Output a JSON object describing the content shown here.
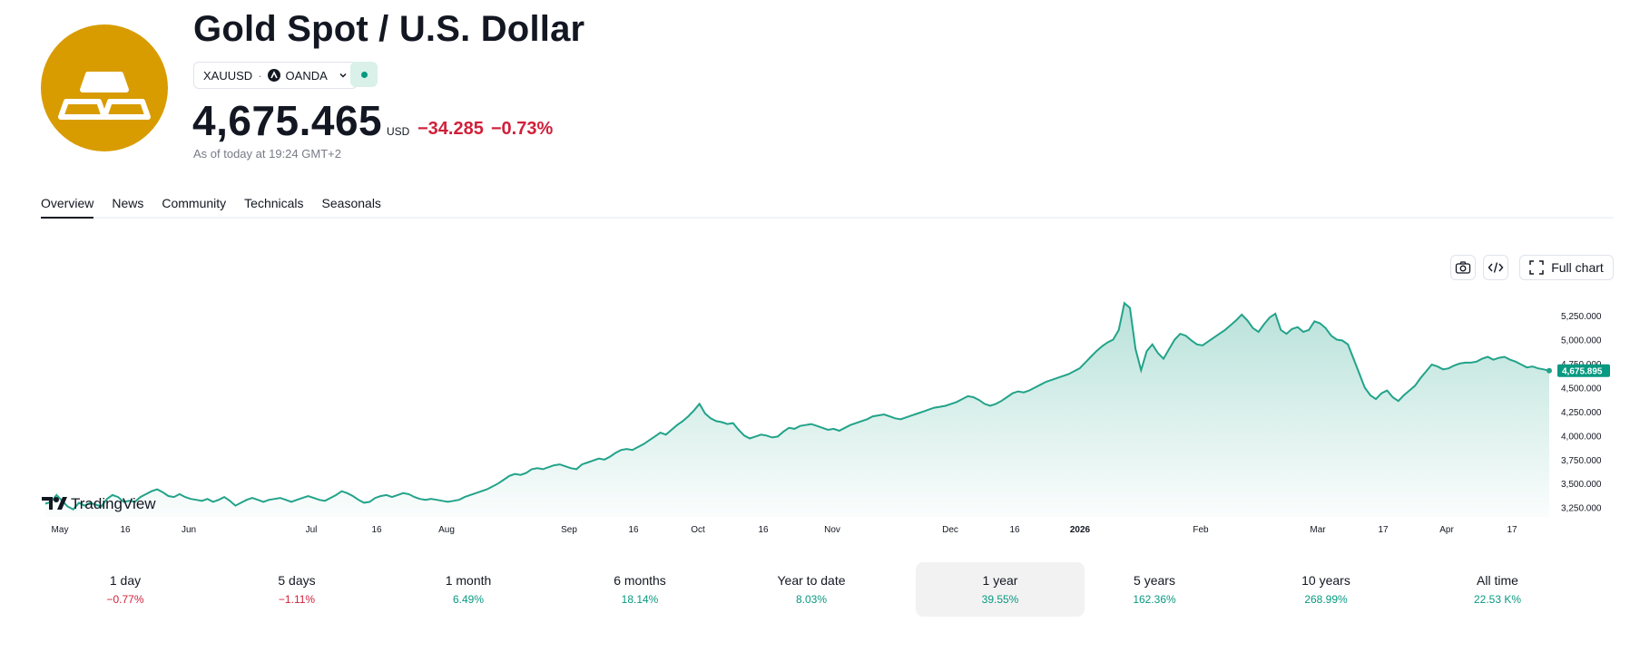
{
  "header": {
    "title": "Gold Spot / U.S. Dollar",
    "symbol": "XAUUSD",
    "separator": "·",
    "exchange": "OANDA",
    "price": "4,675.465",
    "currency": "USD",
    "change_abs": "−34.285",
    "change_pct": "−0.73%",
    "as_of": "As of today at 19:24 GMT+2",
    "colors": {
      "logo_bg": "#d89c00",
      "negative": "#d1203a",
      "positive": "#089981"
    }
  },
  "tabs": [
    {
      "label": "Overview",
      "active": true
    },
    {
      "label": "News"
    },
    {
      "label": "Community"
    },
    {
      "label": "Technicals"
    },
    {
      "label": "Seasonals"
    }
  ],
  "toolbar": {
    "snapshot_icon": "camera-icon",
    "embed_icon": "code-icon",
    "full_chart_icon": "fullscreen-icon",
    "full_chart_label": "Full chart"
  },
  "chart_data": {
    "type": "area",
    "watermark": "TradingView",
    "x_ticks": [
      "May",
      "16",
      "Jun",
      "Jul",
      "16",
      "Aug",
      "Sep",
      "16",
      "Oct",
      "16",
      "Nov",
      "Dec",
      "16",
      "2026",
      "Feb",
      "Mar",
      "17",
      "Apr",
      "17"
    ],
    "y_ticks": [
      "5,250.000",
      "5,000.000",
      "4,750.000",
      "4,500.000",
      "4,250.000",
      "4,000.000",
      "3,750.000",
      "3,500.000",
      "3,250.000"
    ],
    "ylim": [
      3200,
      5420
    ],
    "last_price_label": "4,675.895",
    "line_color": "#22a38a",
    "series": [
      {
        "values": [
          3290,
          3310,
          3380,
          3320,
          3260,
          3230,
          3300,
          3270,
          3300,
          3280,
          3260,
          3340,
          3380,
          3360,
          3310,
          3320,
          3310,
          3360,
          3390,
          3420,
          3440,
          3410,
          3370,
          3360,
          3390,
          3360,
          3340,
          3330,
          3320,
          3340,
          3310,
          3330,
          3360,
          3320,
          3270,
          3300,
          3330,
          3350,
          3330,
          3310,
          3330,
          3340,
          3350,
          3330,
          3310,
          3330,
          3350,
          3370,
          3350,
          3330,
          3320,
          3350,
          3380,
          3420,
          3400,
          3370,
          3330,
          3300,
          3310,
          3350,
          3370,
          3380,
          3360,
          3380,
          3400,
          3390,
          3360,
          3340,
          3330,
          3340,
          3330,
          3320,
          3310,
          3320,
          3330,
          3360,
          3380,
          3400,
          3420,
          3440,
          3470,
          3500,
          3540,
          3580,
          3600,
          3590,
          3610,
          3650,
          3660,
          3650,
          3670,
          3690,
          3700,
          3680,
          3660,
          3650,
          3700,
          3720,
          3740,
          3760,
          3750,
          3780,
          3820,
          3850,
          3860,
          3850,
          3880,
          3910,
          3950,
          3990,
          4030,
          4010,
          4060,
          4110,
          4150,
          4200,
          4260,
          4330,
          4230,
          4180,
          4150,
          4140,
          4120,
          4130,
          4060,
          4000,
          3970,
          3990,
          4010,
          4000,
          3980,
          3990,
          4040,
          4080,
          4070,
          4100,
          4110,
          4120,
          4100,
          4080,
          4060,
          4070,
          4050,
          4080,
          4110,
          4130,
          4150,
          4170,
          4200,
          4210,
          4220,
          4200,
          4180,
          4170,
          4190,
          4210,
          4230,
          4250,
          4270,
          4290,
          4300,
          4310,
          4330,
          4350,
          4380,
          4410,
          4400,
          4370,
          4330,
          4310,
          4330,
          4360,
          4400,
          4440,
          4460,
          4450,
          4470,
          4500,
          4530,
          4560,
          4580,
          4600,
          4620,
          4640,
          4670,
          4700,
          4760,
          4820,
          4880,
          4930,
          4970,
          5000,
          5100,
          5380,
          5330,
          4900,
          4680,
          4880,
          4950,
          4860,
          4800,
          4900,
          5000,
          5060,
          5040,
          4990,
          4950,
          4940,
          4980,
          5020,
          5060,
          5100,
          5150,
          5200,
          5260,
          5200,
          5120,
          5080,
          5160,
          5230,
          5270,
          5100,
          5060,
          5110,
          5130,
          5080,
          5100,
          5190,
          5170,
          5120,
          5040,
          5000,
          4990,
          4950,
          4800,
          4650,
          4500,
          4420,
          4380,
          4440,
          4470,
          4400,
          4360,
          4420,
          4470,
          4520,
          4600,
          4670,
          4740,
          4720,
          4690,
          4700,
          4730,
          4750,
          4760,
          4760,
          4770,
          4800,
          4820,
          4790,
          4810,
          4820,
          4790,
          4770,
          4740,
          4710,
          4720,
          4700,
          4690,
          4676
        ]
      }
    ]
  },
  "periods": [
    {
      "label": "1 day",
      "value": "−0.77%",
      "dir": "neg"
    },
    {
      "label": "5 days",
      "value": "−1.11%",
      "dir": "neg"
    },
    {
      "label": "1 month",
      "value": "6.49%",
      "dir": "pos"
    },
    {
      "label": "6 months",
      "value": "18.14%",
      "dir": "pos"
    },
    {
      "label": "Year to date",
      "value": "8.03%",
      "dir": "pos"
    },
    {
      "label": "1 year",
      "value": "39.55%",
      "dir": "pos",
      "active": true
    },
    {
      "label": "5 years",
      "value": "162.36%",
      "dir": "pos"
    },
    {
      "label": "10 years",
      "value": "268.99%",
      "dir": "pos"
    },
    {
      "label": "All time",
      "value": "22.53 K%",
      "dir": "pos"
    }
  ]
}
